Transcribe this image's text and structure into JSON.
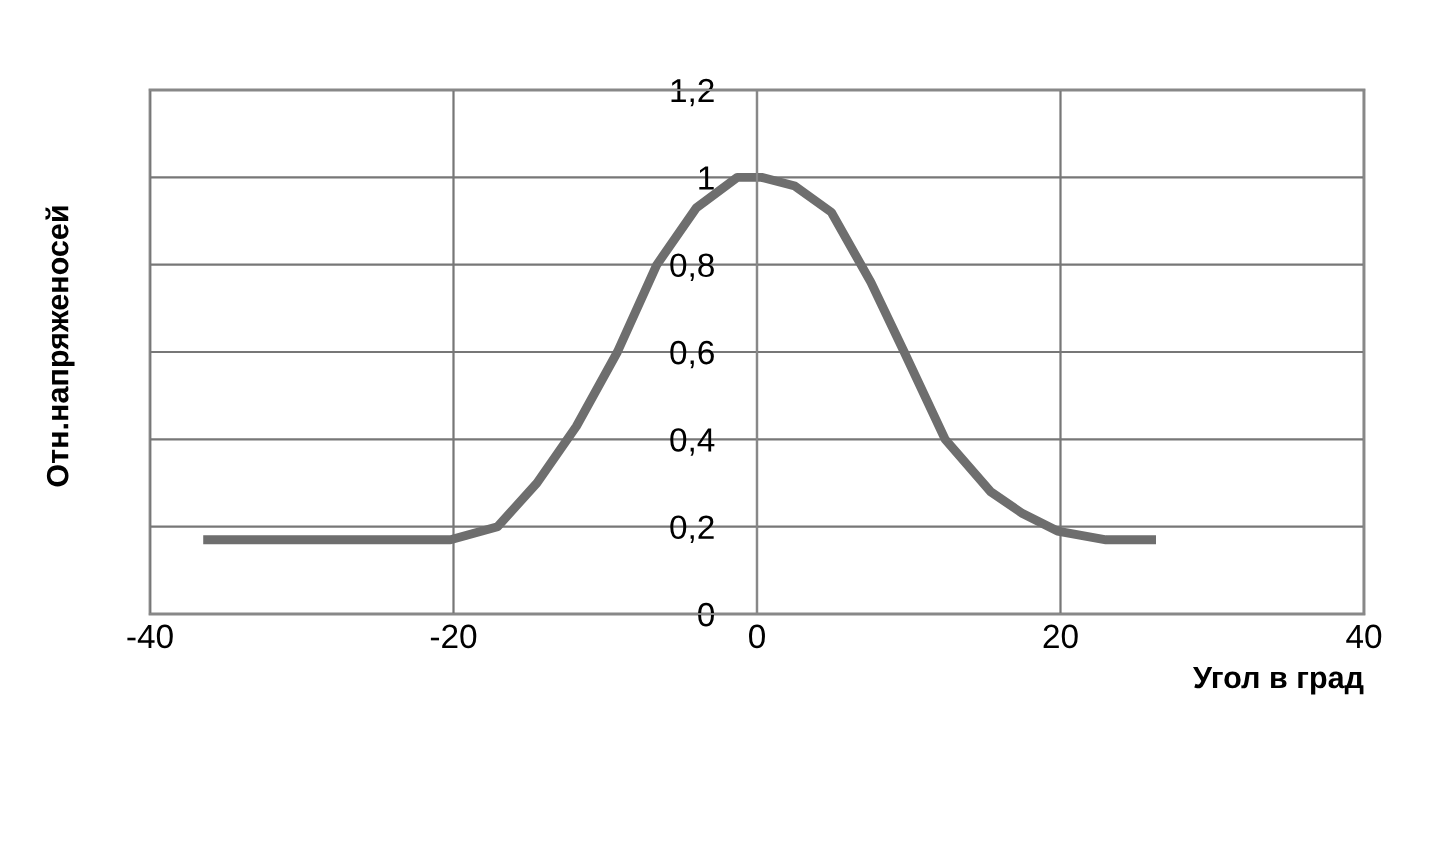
{
  "chart_data": {
    "type": "line",
    "xlabel": "Угол в град",
    "ylabel": "Отн.напряженосей",
    "series": [
      {
        "color": "#6e6e6e",
        "x": [
          -36.2,
          -30,
          -25,
          -20.2,
          -17.1,
          -14.5,
          -11.9,
          -9.2,
          -6.6,
          -4,
          -1.3,
          0.3,
          2.5,
          4.9,
          7.5,
          9.7,
          12.4,
          15.4,
          17.5,
          19.8,
          23,
          26
        ],
        "values": [
          0.17,
          0.17,
          0.17,
          0.17,
          0.2,
          0.3,
          0.43,
          0.6,
          0.8,
          0.93,
          1.0,
          1.0,
          0.98,
          0.92,
          0.76,
          0.6,
          0.4,
          0.28,
          0.23,
          0.19,
          0.17,
          0.17
        ]
      }
    ],
    "xlim": [
      -40,
      40
    ],
    "xticks": [
      -40,
      -20,
      0,
      20,
      40
    ],
    "ylim": [
      0,
      1.2
    ],
    "yticks": [
      {
        "value": 0,
        "label": "0"
      },
      {
        "value": 0.2,
        "label": "0,2"
      },
      {
        "value": 0.4,
        "label": "0,4"
      },
      {
        "value": 0.6,
        "label": "0,6"
      },
      {
        "value": 0.8,
        "label": "0,8"
      },
      {
        "value": 1,
        "label": "1"
      },
      {
        "value": 1.2,
        "label": "1,2"
      }
    ],
    "grid": true,
    "marker": "none",
    "line_style": "solid"
  }
}
